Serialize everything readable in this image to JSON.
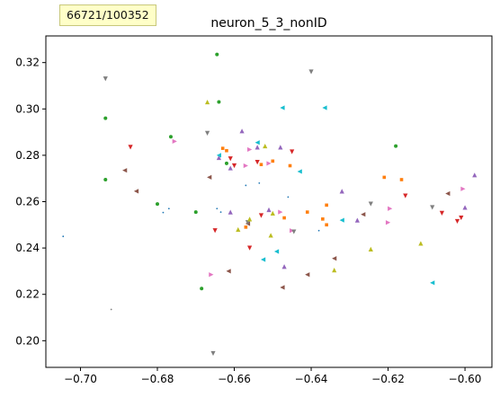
{
  "counter": "66721/100352",
  "chart_data": {
    "type": "scatter",
    "title": "neuron_5_3_nonID",
    "xlabel": "",
    "ylabel": "",
    "xlim": [
      -0.709,
      -0.593
    ],
    "ylim": [
      0.1885,
      0.3315
    ],
    "xticks": [
      -0.7,
      -0.68,
      -0.66,
      -0.64,
      -0.62,
      -0.6
    ],
    "yticks": [
      0.2,
      0.22,
      0.24,
      0.26,
      0.28,
      0.3,
      0.32
    ],
    "xtick_labels": [
      "−0.70",
      "−0.68",
      "−0.66",
      "−0.64",
      "−0.62",
      "−0.60"
    ],
    "ytick_labels": [
      "0.20",
      "0.22",
      "0.24",
      "0.26",
      "0.28",
      "0.30",
      "0.32"
    ],
    "grid": false,
    "legend": "none",
    "series": [
      {
        "name": "blue",
        "color": "#1f77b4",
        "marker": "point",
        "points": [
          [
            -0.7045,
            0.245
          ],
          [
            -0.6785,
            0.2553
          ],
          [
            -0.677,
            0.257
          ],
          [
            -0.657,
            0.267
          ],
          [
            -0.6535,
            0.268
          ],
          [
            -0.646,
            0.262
          ],
          [
            -0.638,
            0.2475
          ],
          [
            -0.6635,
            0.2555
          ]
        ]
      },
      {
        "name": "orange",
        "color": "#ff7f0e",
        "marker": "square",
        "points": [
          [
            -0.663,
            0.283
          ],
          [
            -0.662,
            0.282
          ],
          [
            -0.657,
            0.249
          ],
          [
            -0.653,
            0.276
          ],
          [
            -0.65,
            0.2775
          ],
          [
            -0.647,
            0.253
          ],
          [
            -0.6455,
            0.2755
          ],
          [
            -0.641,
            0.2555
          ],
          [
            -0.637,
            0.2525
          ],
          [
            -0.636,
            0.2585
          ],
          [
            -0.636,
            0.25
          ],
          [
            -0.621,
            0.2705
          ],
          [
            -0.6165,
            0.2695
          ]
        ]
      },
      {
        "name": "green",
        "color": "#2ca02c",
        "marker": "circle",
        "points": [
          [
            -0.6935,
            0.296
          ],
          [
            -0.6935,
            0.2695
          ],
          [
            -0.68,
            0.259
          ],
          [
            -0.6765,
            0.288
          ],
          [
            -0.67,
            0.2555
          ],
          [
            -0.6685,
            0.2225
          ],
          [
            -0.6645,
            0.3235
          ],
          [
            -0.664,
            0.303
          ],
          [
            -0.662,
            0.2765
          ],
          [
            -0.618,
            0.284
          ]
        ]
      },
      {
        "name": "red",
        "color": "#d62728",
        "marker": "triangle_down",
        "points": [
          [
            -0.687,
            0.2835
          ],
          [
            -0.665,
            0.2475
          ],
          [
            -0.661,
            0.2785
          ],
          [
            -0.66,
            0.2755
          ],
          [
            -0.656,
            0.24
          ],
          [
            -0.654,
            0.277
          ],
          [
            -0.653,
            0.254
          ],
          [
            -0.645,
            0.2815
          ],
          [
            -0.6155,
            0.2625
          ],
          [
            -0.606,
            0.255
          ],
          [
            -0.601,
            0.253
          ],
          [
            -0.602,
            0.2515
          ]
        ]
      },
      {
        "name": "purple",
        "color": "#9467bd",
        "marker": "triangle_up",
        "points": [
          [
            -0.664,
            0.279
          ],
          [
            -0.661,
            0.2555
          ],
          [
            -0.661,
            0.2745
          ],
          [
            -0.658,
            0.2905
          ],
          [
            -0.654,
            0.2835
          ],
          [
            -0.651,
            0.2565
          ],
          [
            -0.648,
            0.2835
          ],
          [
            -0.647,
            0.232
          ],
          [
            -0.632,
            0.2645
          ],
          [
            -0.628,
            0.252
          ],
          [
            -0.6,
            0.2575
          ],
          [
            -0.5975,
            0.2715
          ]
        ]
      },
      {
        "name": "brown",
        "color": "#8c564b",
        "marker": "triangle_left",
        "points": [
          [
            -0.6885,
            0.2735
          ],
          [
            -0.6855,
            0.2645
          ],
          [
            -0.6665,
            0.2705
          ],
          [
            -0.6615,
            0.23
          ],
          [
            -0.6565,
            0.2505
          ],
          [
            -0.6475,
            0.223
          ],
          [
            -0.641,
            0.2285
          ],
          [
            -0.634,
            0.2355
          ],
          [
            -0.6265,
            0.2545
          ],
          [
            -0.6045,
            0.2635
          ]
        ]
      },
      {
        "name": "pink",
        "color": "#e377c2",
        "marker": "triangle_right",
        "points": [
          [
            -0.6755,
            0.286
          ],
          [
            -0.666,
            0.2285
          ],
          [
            -0.657,
            0.2755
          ],
          [
            -0.656,
            0.2825
          ],
          [
            -0.651,
            0.2765
          ],
          [
            -0.648,
            0.2555
          ],
          [
            -0.645,
            0.2475
          ],
          [
            -0.62,
            0.251
          ],
          [
            -0.6195,
            0.257
          ],
          [
            -0.6005,
            0.2655
          ]
        ]
      },
      {
        "name": "gray",
        "color": "#7f7f7f",
        "marker": "triangle_down",
        "points": [
          [
            -0.6935,
            0.313
          ],
          [
            -0.667,
            0.2895
          ],
          [
            -0.6655,
            0.1945
          ],
          [
            -0.6565,
            0.251
          ],
          [
            -0.6445,
            0.247
          ],
          [
            -0.64,
            0.316
          ],
          [
            -0.6245,
            0.259
          ],
          [
            -0.6085,
            0.2575
          ]
        ]
      },
      {
        "name": "olive",
        "color": "#bcbd22",
        "marker": "triangle_up",
        "points": [
          [
            -0.667,
            0.303
          ],
          [
            -0.659,
            0.248
          ],
          [
            -0.656,
            0.2525
          ],
          [
            -0.652,
            0.284
          ],
          [
            -0.6505,
            0.2455
          ],
          [
            -0.65,
            0.255
          ],
          [
            -0.634,
            0.2305
          ],
          [
            -0.6245,
            0.2395
          ],
          [
            -0.6115,
            0.242
          ]
        ]
      },
      {
        "name": "cyan",
        "color": "#17becf",
        "marker": "triangle_left",
        "points": [
          [
            -0.664,
            0.28
          ],
          [
            -0.654,
            0.2855
          ],
          [
            -0.6525,
            0.235
          ],
          [
            -0.649,
            0.2385
          ],
          [
            -0.6475,
            0.3005
          ],
          [
            -0.643,
            0.273
          ],
          [
            -0.6365,
            0.3005
          ],
          [
            -0.632,
            0.252
          ],
          [
            -0.6085,
            0.225
          ]
        ]
      }
    ],
    "extra_points": [
      {
        "color": "#7f7f7f",
        "marker": "point",
        "x": -0.692,
        "y": 0.2135
      },
      {
        "color": "#1f77b4",
        "marker": "point",
        "x": -0.6645,
        "y": 0.257
      }
    ]
  }
}
